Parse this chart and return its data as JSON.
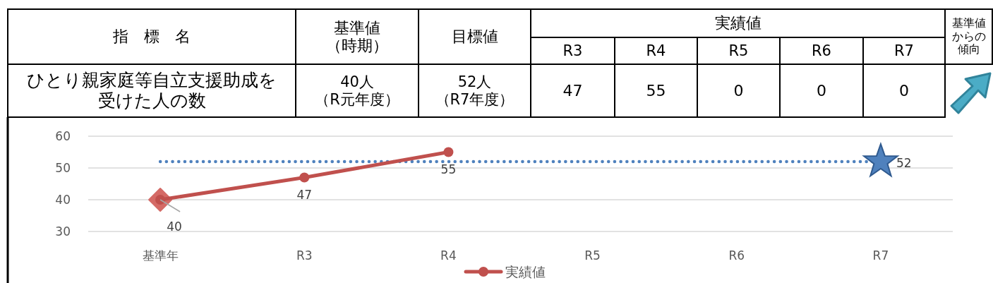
{
  "chart_data": [
    {
      "type": "other",
      "annotations": [
        "指　標　名",
        "基準値（時期）",
        "目標値",
        "実績値",
        "R3",
        "R4",
        "R5",
        "R6",
        "R7",
        "基準値からの傾向",
        "ひとり親家庭等自立支援助成を受けた人の数",
        "40人（R元年度）",
        "52人（R7年度）",
        "47",
        "55",
        "0",
        "0",
        "0"
      ]
    },
    {
      "type": "line",
      "categories": [
        "基準年",
        "R3",
        "R4",
        "R5",
        "R6",
        "R7"
      ],
      "ylim": [
        30,
        60
      ],
      "yticks": [
        30,
        40,
        50,
        60
      ],
      "grid": "y",
      "legend": "bottom",
      "series": [
        {
          "type": "scatter",
          "color": "#d46a66",
          "x": [
            "基準年"
          ],
          "values": [
            40
          ],
          "marker": "diamond"
        },
        {
          "name": "実績値",
          "color": "#c0504d",
          "values": [
            40,
            47,
            55,
            null,
            null,
            null
          ],
          "marker": "circle",
          "data_labels": true
        },
        {
          "type": "scatter",
          "color": "#4f81bd",
          "x": [
            "R7"
          ],
          "values": [
            52
          ],
          "marker": "star",
          "data_labels": true
        }
      ],
      "ref_lines": [
        {
          "axis": "y",
          "value": 52,
          "color": "#4f81bd",
          "line_style": "dotted"
        }
      ]
    }
  ]
}
